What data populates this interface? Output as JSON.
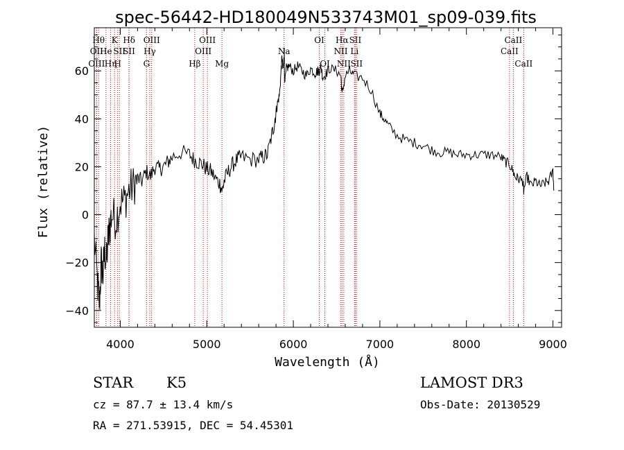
{
  "chart_data": {
    "type": "line",
    "title": "spec-56442-HD180049N533743M01_sp09-039.fits",
    "xlabel": "Wavelength (Å)",
    "ylabel": "Flux (relative)",
    "xlim": [
      3700,
      9100
    ],
    "ylim": [
      -47,
      78
    ],
    "xticks": [
      4000,
      5000,
      6000,
      7000,
      8000,
      9000
    ],
    "yticks": [
      -40,
      -20,
      0,
      20,
      40,
      60
    ],
    "grid": false,
    "series": [
      {
        "values_x": [
          3700,
          3740,
          3760,
          3780,
          3800,
          3820,
          3840,
          3860,
          3880,
          3900,
          3950,
          4000,
          4050,
          4100,
          4150,
          4200,
          4250,
          4300,
          4350,
          4400,
          4450,
          4500,
          4550,
          4600,
          4700,
          4800,
          4850,
          4900,
          4950,
          5000,
          5050,
          5100,
          5150,
          5180,
          5200,
          5250,
          5300,
          5350,
          5400,
          5500,
          5600,
          5650,
          5700,
          5750,
          5780,
          5800,
          5820,
          5840,
          5860,
          5870,
          5880,
          5890,
          5895,
          5900,
          5920,
          5950,
          6000,
          6050,
          6100,
          6150,
          6200,
          6250,
          6280,
          6300,
          6320,
          6340,
          6380,
          6420,
          6500,
          6550,
          6563,
          6600,
          6650,
          6700,
          6800,
          6900,
          7000,
          7050,
          7100,
          7200,
          7300,
          7400,
          7500,
          7600,
          7700,
          7800,
          7900,
          8000,
          8100,
          8200,
          8300,
          8400,
          8450,
          8500,
          8540,
          8560,
          8600,
          8650,
          8662,
          8700,
          8750,
          8800,
          8850,
          8900,
          8950,
          9000,
          9010
        ],
        "values_y": [
          -10,
          -30,
          -37,
          -20,
          -25,
          -15,
          -20,
          -10,
          -5,
          0,
          -2,
          5,
          6,
          10,
          12,
          15,
          14,
          18,
          16,
          20,
          19,
          20,
          22,
          24,
          26,
          25,
          23,
          22,
          21,
          19,
          18,
          15,
          13,
          10,
          14,
          18,
          21,
          23,
          24,
          23,
          23,
          24,
          25,
          33,
          38,
          43,
          47,
          50,
          61,
          66,
          60,
          64,
          68,
          54,
          61,
          62,
          60,
          62,
          60,
          58,
          61,
          59,
          60,
          60,
          62,
          57,
          59,
          61,
          60,
          58,
          50,
          58,
          60,
          58,
          57,
          52,
          42,
          40,
          37,
          33,
          31,
          30,
          29,
          27,
          26,
          26,
          25,
          25,
          25,
          25,
          25,
          24,
          22,
          21,
          18,
          16,
          15,
          14,
          10,
          16,
          12,
          14,
          12,
          13,
          14,
          18,
          10
        ]
      }
    ],
    "lines": [
      {
        "x": 3750,
        "label": "Hθ",
        "row": 1
      },
      {
        "x": 3727,
        "label": "OII",
        "row": 2
      },
      {
        "x": 3727,
        "label": "OIII",
        "row": 3
      },
      {
        "x": 3835,
        "label": "He",
        "row": 2
      },
      {
        "x": 3889,
        "label": "Hη",
        "row": 3
      },
      {
        "x": 3934,
        "label": "K",
        "row": 1
      },
      {
        "x": 3970,
        "label": "H",
        "row": 3
      },
      {
        "x": 3990,
        "label": "SII",
        "row": 2
      },
      {
        "x": 4102,
        "label": "Hδ",
        "row": 1
      },
      {
        "x": 4101,
        "label": "SII",
        "row": 2
      },
      {
        "x": 4304,
        "label": "G",
        "row": 3
      },
      {
        "x": 4341,
        "label": "Hγ",
        "row": 2
      },
      {
        "x": 4363,
        "label": "OIII",
        "row": 1
      },
      {
        "x": 4861,
        "label": "Hβ",
        "row": 3
      },
      {
        "x": 4959,
        "label": "OIII",
        "row": 2
      },
      {
        "x": 5007,
        "label": "OIII",
        "row": 1
      },
      {
        "x": 5175,
        "label": "Mg",
        "row": 3
      },
      {
        "x": 5893,
        "label": "Na",
        "row": 2
      },
      {
        "x": 6300,
        "label": "OI",
        "row": 1
      },
      {
        "x": 6364,
        "label": "OI",
        "row": 3
      },
      {
        "x": 6548,
        "label": "NII",
        "row": 2
      },
      {
        "x": 6563,
        "label": "Hα",
        "row": 1
      },
      {
        "x": 6583,
        "label": "NII",
        "row": 3
      },
      {
        "x": 6707,
        "label": "Li",
        "row": 2
      },
      {
        "x": 6716,
        "label": "SII",
        "row": 1
      },
      {
        "x": 6731,
        "label": "SII",
        "row": 3
      },
      {
        "x": 8498,
        "label": "CaII",
        "row": 2
      },
      {
        "x": 8542,
        "label": "CaII",
        "row": 1
      },
      {
        "x": 8662,
        "label": "CaII",
        "row": 3
      }
    ]
  },
  "info": {
    "class": "STAR",
    "subclass": "K5",
    "survey": "LAMOST DR3",
    "cz": "cz = 87.7 ± 13.4 km/s",
    "obs_date": "Obs-Date: 20130529",
    "coords": "RA = 271.53915, DEC =  54.45301"
  },
  "colors": {
    "line": "#000000",
    "marker": "#cc0000",
    "background": "#ffffff"
  }
}
